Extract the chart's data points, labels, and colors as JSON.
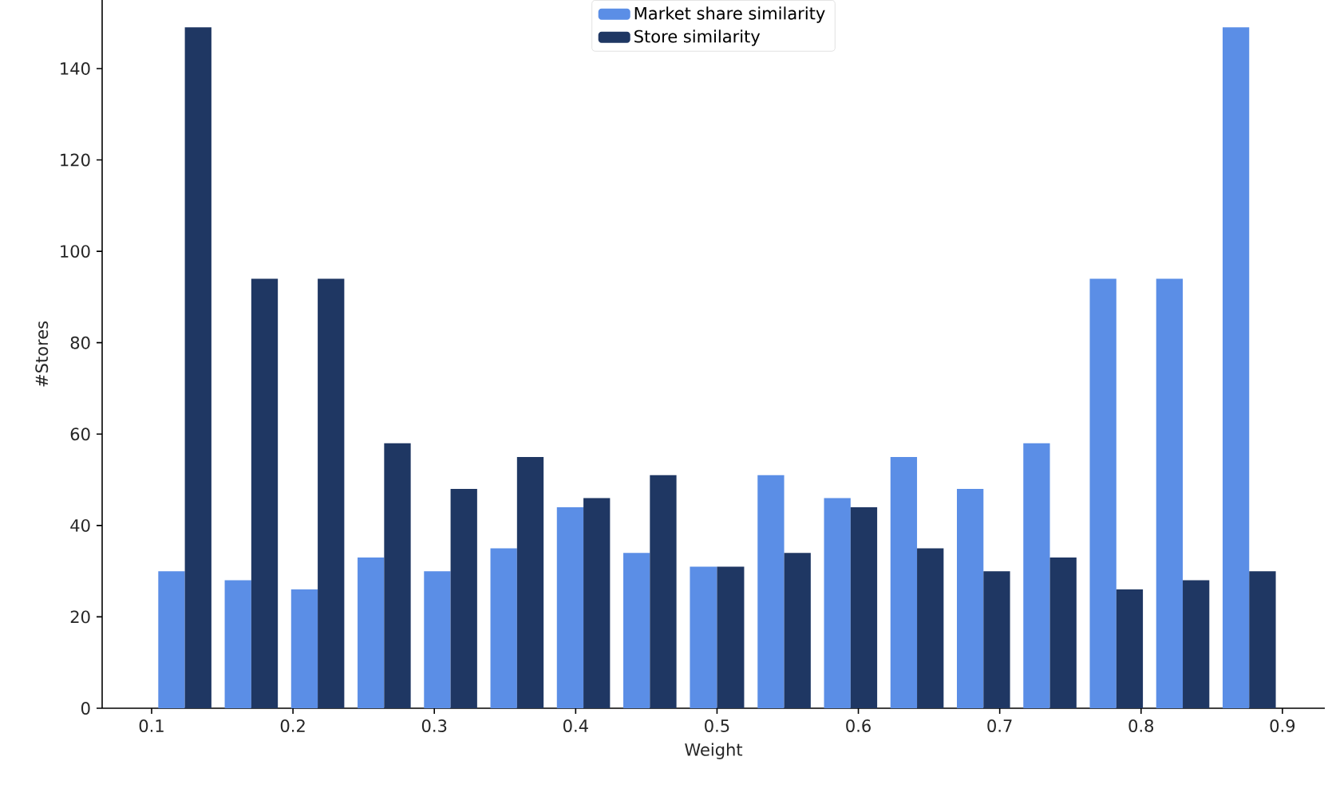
{
  "chart_data": {
    "type": "histogram",
    "xlabel": "Weight",
    "ylabel": "#Stores",
    "bins": [
      0.1,
      0.147,
      0.194,
      0.241,
      0.288,
      0.335,
      0.382,
      0.429,
      0.476,
      0.524,
      0.571,
      0.618,
      0.665,
      0.712,
      0.759,
      0.806,
      0.853,
      0.9
    ],
    "series": [
      {
        "name": "Market share similarity",
        "color": "#5b8ee6",
        "values": [
          30,
          28,
          26,
          33,
          30,
          35,
          44,
          34,
          31,
          51,
          46,
          55,
          48,
          58,
          94,
          94,
          149
        ]
      },
      {
        "name": "Store similarity",
        "color": "#1f3763",
        "values": [
          149,
          94,
          94,
          58,
          48,
          55,
          46,
          51,
          31,
          34,
          44,
          35,
          30,
          33,
          26,
          28,
          30
        ]
      }
    ],
    "xlim": [
      0.065,
      0.93
    ],
    "ylim": [
      0,
      155
    ],
    "xticks": [
      0.1,
      0.2,
      0.3,
      0.4,
      0.5,
      0.6,
      0.7,
      0.8,
      0.9
    ],
    "yticks": [
      0,
      20,
      40,
      60,
      80,
      100,
      120,
      140
    ],
    "grid": false,
    "legend": "top"
  }
}
